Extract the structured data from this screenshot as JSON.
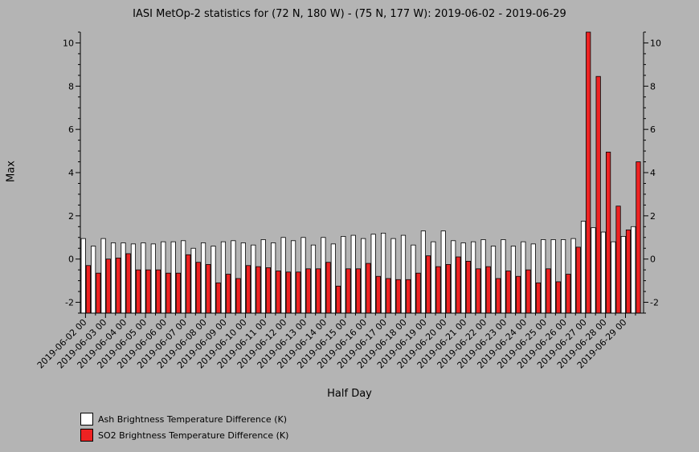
{
  "chart_data": {
    "type": "bar",
    "title": "IASI MetOp-2 statistics for (72 N, 180 W) - (75 N, 177 W): 2019-06-02 - 2019-06-29",
    "xlabel": "Half Day",
    "ylabel": "Max",
    "ylim": [
      -2.5,
      10.5
    ],
    "yticks": [
      -2,
      0,
      2,
      4,
      6,
      8,
      10
    ],
    "categories": [
      "2019-06-02 00",
      "2019-06-02 12",
      "2019-06-03 00",
      "2019-06-03 12",
      "2019-06-04 00",
      "2019-06-04 12",
      "2019-06-05 00",
      "2019-06-05 12",
      "2019-06-06 00",
      "2019-06-06 12",
      "2019-06-07 00",
      "2019-06-07 12",
      "2019-06-08 00",
      "2019-06-08 12",
      "2019-06-09 00",
      "2019-06-09 12",
      "2019-06-10 00",
      "2019-06-10 12",
      "2019-06-11 00",
      "2019-06-11 12",
      "2019-06-12 00",
      "2019-06-12 12",
      "2019-06-13 00",
      "2019-06-13 12",
      "2019-06-14 00",
      "2019-06-14 12",
      "2019-06-15 00",
      "2019-06-15 12",
      "2019-06-16 00",
      "2019-06-16 12",
      "2019-06-17 00",
      "2019-06-17 12",
      "2019-06-18 00",
      "2019-06-18 12",
      "2019-06-19 00",
      "2019-06-19 12",
      "2019-06-20 00",
      "2019-06-20 12",
      "2019-06-21 00",
      "2019-06-21 12",
      "2019-06-22 00",
      "2019-06-22 12",
      "2019-06-23 00",
      "2019-06-23 12",
      "2019-06-24 00",
      "2019-06-24 12",
      "2019-06-25 00",
      "2019-06-25 12",
      "2019-06-26 00",
      "2019-06-26 12",
      "2019-06-27 00",
      "2019-06-27 12",
      "2019-06-28 00",
      "2019-06-28 12",
      "2019-06-29 00",
      "2019-06-29 12"
    ],
    "tick_labels": [
      "2019-06-02 00",
      "2019-06-03 00",
      "2019-06-04 00",
      "2019-06-05 00",
      "2019-06-06 00",
      "2019-06-07 00",
      "2019-06-08 00",
      "2019-06-09 00",
      "2019-06-10 00",
      "2019-06-11 00",
      "2019-06-12 00",
      "2019-06-13 00",
      "2019-06-14 00",
      "2019-06-15 00",
      "2019-06-16 00",
      "2019-06-17 00",
      "2019-06-18 00",
      "2019-06-19 00",
      "2019-06-20 00",
      "2019-06-21 00",
      "2019-06-22 00",
      "2019-06-23 00",
      "2019-06-24 00",
      "2019-06-25 00",
      "2019-06-26 00",
      "2019-06-27 00",
      "2019-06-28 00",
      "2019-06-29 00"
    ],
    "series": [
      {
        "name": "Ash Brightness Temperature Difference (K)",
        "color": "#ffffff",
        "values": [
          0.95,
          0.6,
          0.95,
          0.75,
          0.75,
          0.7,
          0.75,
          0.7,
          0.8,
          0.8,
          0.85,
          0.5,
          0.75,
          0.6,
          0.8,
          0.85,
          0.75,
          0.65,
          0.9,
          0.75,
          1.0,
          0.85,
          1.0,
          0.65,
          1.0,
          0.7,
          1.05,
          1.1,
          0.95,
          1.15,
          1.2,
          0.95,
          1.1,
          0.65,
          1.3,
          0.8,
          1.3,
          0.85,
          0.75,
          0.8,
          0.9,
          0.6,
          0.9,
          0.6,
          0.8,
          0.7,
          0.9,
          0.9,
          0.9,
          0.95,
          1.75,
          1.45,
          1.25,
          0.8,
          1.05,
          1.5
        ]
      },
      {
        "name": "SO2 Brightness Temperature Difference (K)",
        "color": "#ee2222",
        "values": [
          -0.3,
          -0.65,
          0.0,
          0.05,
          0.25,
          -0.5,
          -0.5,
          -0.5,
          -0.65,
          -0.65,
          0.2,
          -0.15,
          -0.25,
          -1.1,
          -0.7,
          -0.9,
          -0.3,
          -0.35,
          -0.4,
          -0.55,
          -0.6,
          -0.6,
          -0.45,
          -0.45,
          -0.15,
          -1.25,
          -0.45,
          -0.45,
          -0.2,
          -0.8,
          -0.9,
          -0.95,
          -0.95,
          -0.65,
          0.15,
          -0.35,
          -0.25,
          0.1,
          -0.1,
          -0.45,
          -0.35,
          -0.9,
          -0.55,
          -0.8,
          -0.5,
          -1.1,
          -0.45,
          -1.05,
          -0.7,
          0.55,
          10.5,
          8.45,
          4.95,
          2.45,
          1.35,
          4.5
        ]
      }
    ],
    "legend_position": "bottom-left",
    "grid": false
  }
}
